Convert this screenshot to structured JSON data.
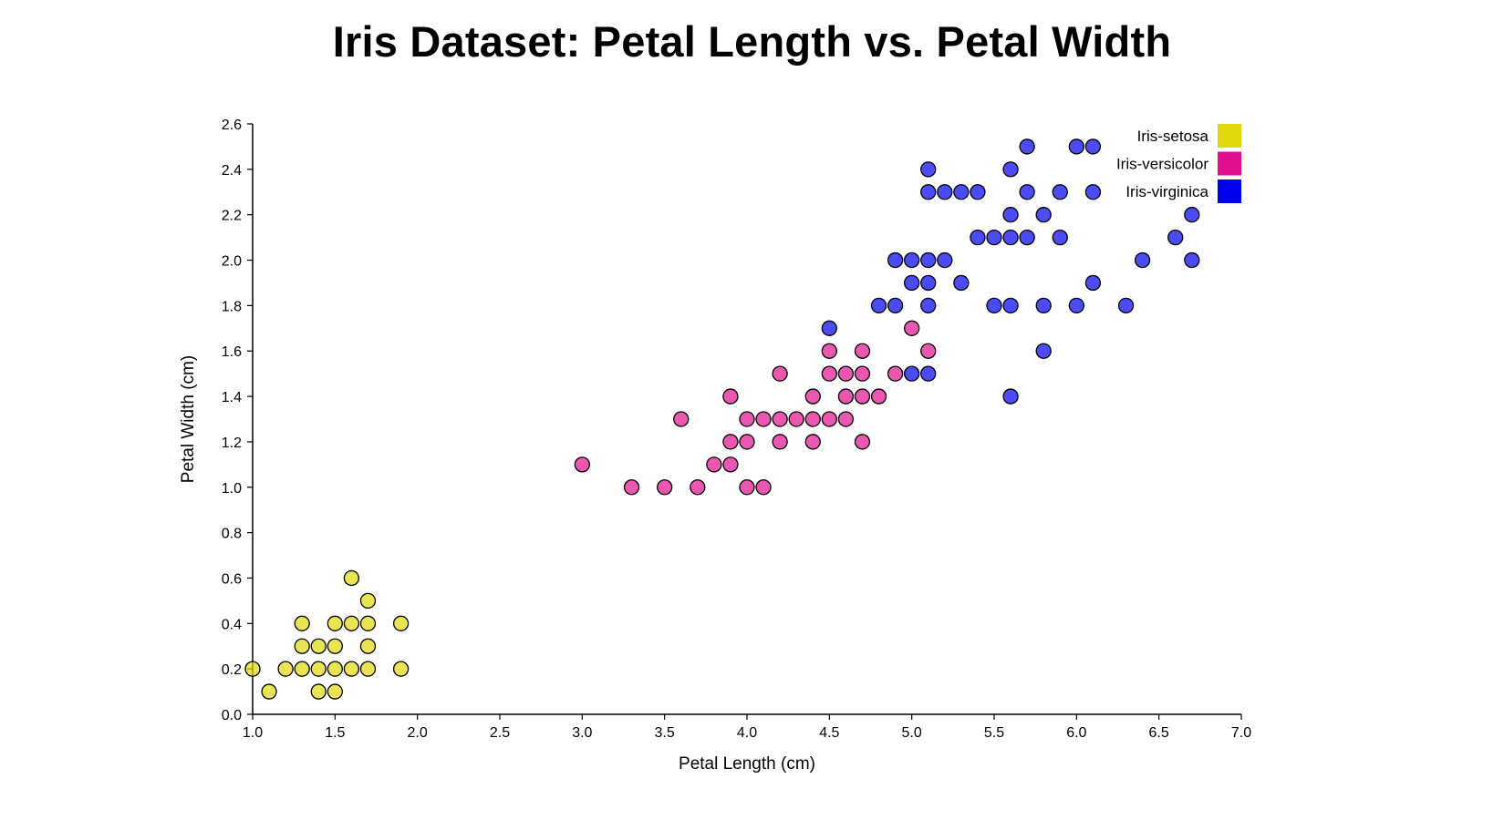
{
  "chart_data": {
    "type": "scatter",
    "title": "Iris Dataset: Petal Length vs. Petal Width",
    "xlabel": "Petal Length (cm)",
    "ylabel": "Petal Width (cm)",
    "xlim": [
      1.0,
      7.0
    ],
    "ylim": [
      0.0,
      2.6
    ],
    "xticks": [
      "1.0",
      "1.5",
      "2.0",
      "2.5",
      "3.0",
      "3.5",
      "4.0",
      "4.5",
      "5.0",
      "5.5",
      "6.0",
      "6.5",
      "7.0"
    ],
    "yticks": [
      "0.0",
      "0.2",
      "0.4",
      "0.6",
      "0.8",
      "1.0",
      "1.2",
      "1.4",
      "1.6",
      "1.8",
      "2.0",
      "2.2",
      "2.4",
      "2.6"
    ],
    "grid": false,
    "legend_position": "top-right",
    "series": [
      {
        "name": "Iris-setosa",
        "color": "#e0d80a",
        "points": [
          [
            1.0,
            0.2
          ],
          [
            1.1,
            0.1
          ],
          [
            1.2,
            0.2
          ],
          [
            1.3,
            0.2
          ],
          [
            1.3,
            0.3
          ],
          [
            1.3,
            0.4
          ],
          [
            1.4,
            0.1
          ],
          [
            1.4,
            0.2
          ],
          [
            1.4,
            0.3
          ],
          [
            1.5,
            0.1
          ],
          [
            1.5,
            0.2
          ],
          [
            1.5,
            0.3
          ],
          [
            1.5,
            0.4
          ],
          [
            1.6,
            0.2
          ],
          [
            1.6,
            0.4
          ],
          [
            1.6,
            0.6
          ],
          [
            1.7,
            0.2
          ],
          [
            1.7,
            0.3
          ],
          [
            1.7,
            0.4
          ],
          [
            1.7,
            0.5
          ],
          [
            1.9,
            0.2
          ],
          [
            1.9,
            0.4
          ]
        ]
      },
      {
        "name": "Iris-versicolor",
        "color": "#e0108f",
        "points": [
          [
            3.0,
            1.1
          ],
          [
            3.3,
            1.0
          ],
          [
            3.5,
            1.0
          ],
          [
            3.6,
            1.3
          ],
          [
            3.7,
            1.0
          ],
          [
            3.8,
            1.1
          ],
          [
            3.9,
            1.1
          ],
          [
            3.9,
            1.2
          ],
          [
            3.9,
            1.4
          ],
          [
            4.0,
            1.0
          ],
          [
            4.0,
            1.2
          ],
          [
            4.0,
            1.3
          ],
          [
            4.1,
            1.0
          ],
          [
            4.1,
            1.3
          ],
          [
            4.2,
            1.2
          ],
          [
            4.2,
            1.3
          ],
          [
            4.2,
            1.5
          ],
          [
            4.3,
            1.3
          ],
          [
            4.4,
            1.2
          ],
          [
            4.4,
            1.3
          ],
          [
            4.4,
            1.4
          ],
          [
            4.5,
            1.3
          ],
          [
            4.5,
            1.5
          ],
          [
            4.5,
            1.6
          ],
          [
            4.6,
            1.3
          ],
          [
            4.6,
            1.4
          ],
          [
            4.6,
            1.5
          ],
          [
            4.7,
            1.2
          ],
          [
            4.7,
            1.4
          ],
          [
            4.7,
            1.5
          ],
          [
            4.7,
            1.6
          ],
          [
            4.8,
            1.4
          ],
          [
            4.9,
            1.5
          ],
          [
            5.0,
            1.7
          ],
          [
            5.1,
            1.6
          ]
        ]
      },
      {
        "name": "Iris-virginica",
        "color": "#0000f0",
        "points": [
          [
            4.5,
            1.7
          ],
          [
            4.8,
            1.8
          ],
          [
            4.9,
            1.8
          ],
          [
            4.9,
            2.0
          ],
          [
            5.0,
            1.5
          ],
          [
            5.0,
            1.9
          ],
          [
            5.0,
            2.0
          ],
          [
            5.1,
            1.5
          ],
          [
            5.1,
            1.8
          ],
          [
            5.1,
            1.9
          ],
          [
            5.1,
            2.0
          ],
          [
            5.1,
            2.3
          ],
          [
            5.1,
            2.4
          ],
          [
            5.2,
            2.0
          ],
          [
            5.2,
            2.3
          ],
          [
            5.3,
            1.9
          ],
          [
            5.3,
            2.3
          ],
          [
            5.4,
            2.1
          ],
          [
            5.4,
            2.3
          ],
          [
            5.5,
            1.8
          ],
          [
            5.5,
            2.1
          ],
          [
            5.6,
            1.4
          ],
          [
            5.6,
            1.8
          ],
          [
            5.6,
            2.1
          ],
          [
            5.6,
            2.2
          ],
          [
            5.6,
            2.4
          ],
          [
            5.7,
            2.1
          ],
          [
            5.7,
            2.3
          ],
          [
            5.7,
            2.5
          ],
          [
            5.8,
            1.6
          ],
          [
            5.8,
            1.8
          ],
          [
            5.8,
            2.2
          ],
          [
            5.9,
            2.1
          ],
          [
            5.9,
            2.3
          ],
          [
            6.0,
            1.8
          ],
          [
            6.0,
            2.5
          ],
          [
            6.1,
            1.9
          ],
          [
            6.1,
            2.3
          ],
          [
            6.1,
            2.5
          ],
          [
            6.3,
            1.8
          ],
          [
            6.4,
            2.0
          ],
          [
            6.6,
            2.1
          ],
          [
            6.7,
            2.0
          ],
          [
            6.7,
            2.2
          ]
        ]
      }
    ]
  }
}
